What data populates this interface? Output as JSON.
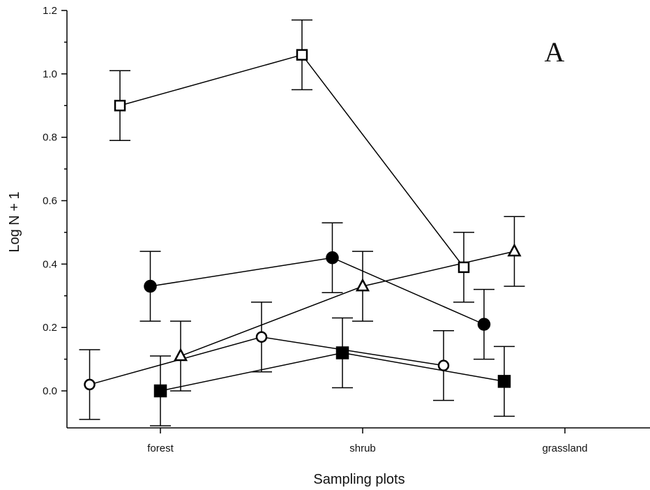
{
  "chart_data": {
    "type": "scatter",
    "title": "",
    "panel_label": "A",
    "xlabel": "Sampling plots",
    "ylabel": "Log N + 1",
    "categories": [
      "forest",
      "shrub",
      "grassland"
    ],
    "yticks": [
      "0.0",
      "0.2",
      "0.4",
      "0.6",
      "0.8",
      "1.0",
      "1.2"
    ],
    "ylim": [
      -0.11,
      1.2
    ],
    "grid": false,
    "series": [
      {
        "marker": "open-square",
        "x": [
          0.8,
          1.7,
          2.5
        ],
        "y": [
          0.9,
          1.06,
          0.39
        ],
        "err": [
          0.11,
          0.11,
          0.11
        ]
      },
      {
        "marker": "filled-circle",
        "x": [
          0.95,
          1.85,
          2.6
        ],
        "y": [
          0.33,
          0.42,
          0.21
        ],
        "err": [
          0.11,
          0.11,
          0.11
        ]
      },
      {
        "marker": "open-triangle",
        "x": [
          1.1,
          2.0,
          2.75
        ],
        "y": [
          0.11,
          0.33,
          0.44
        ],
        "err": [
          0.11,
          0.11,
          0.11
        ]
      },
      {
        "marker": "open-circle",
        "x": [
          0.65,
          1.5,
          2.4
        ],
        "y": [
          0.02,
          0.17,
          0.08
        ],
        "err": [
          0.11,
          0.11,
          0.11
        ]
      },
      {
        "marker": "filled-square",
        "x": [
          1.0,
          1.9,
          2.7
        ],
        "y": [
          0.0,
          0.12,
          0.03
        ],
        "err": [
          0.11,
          0.11,
          0.11
        ]
      }
    ]
  }
}
